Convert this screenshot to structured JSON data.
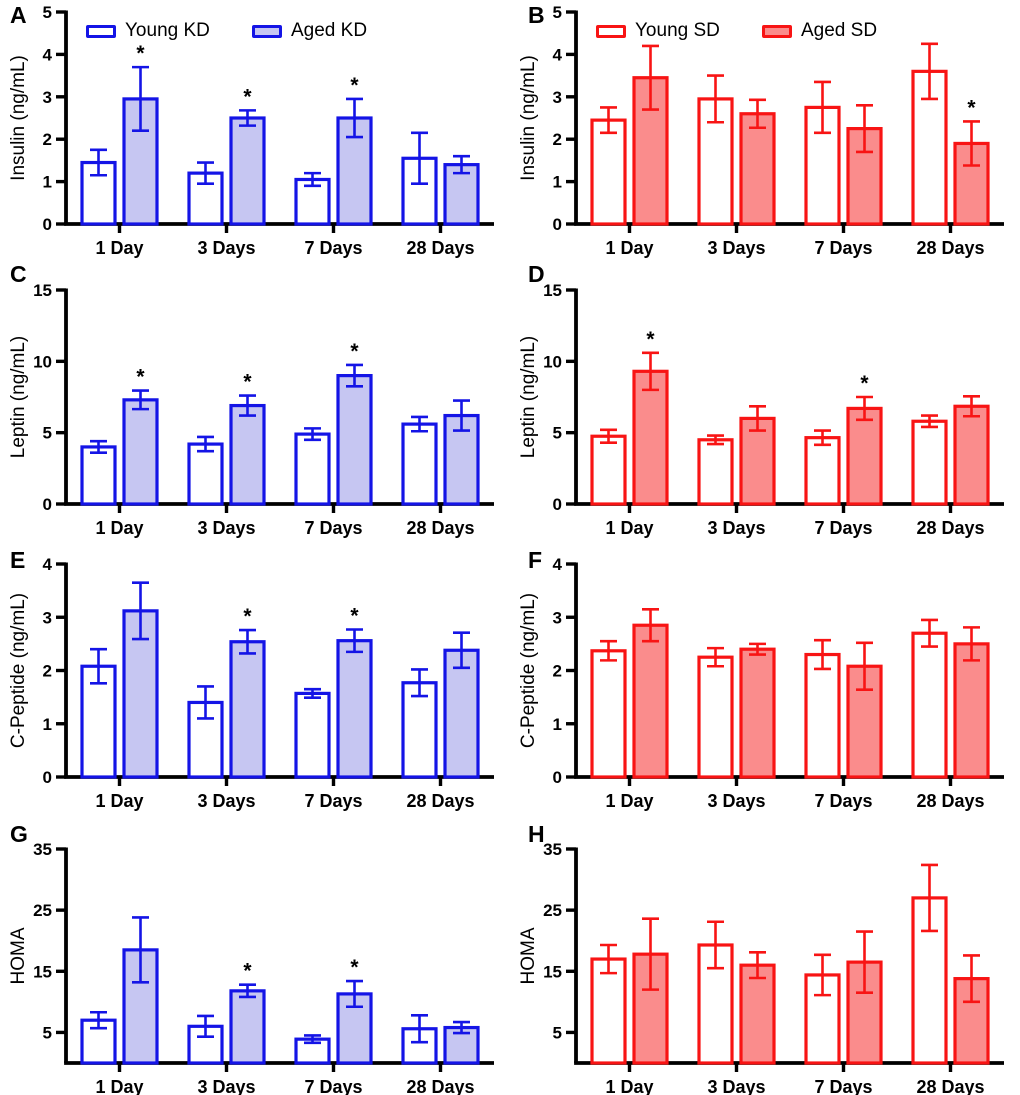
{
  "style": {
    "colors": {
      "blue": {
        "stroke": "#1414e6",
        "fill": "#c6c6f2"
      },
      "red": {
        "stroke": "#f81414",
        "fill": "#fa8c8c"
      }
    },
    "axis_color": "#000000",
    "sig_marker": "*"
  },
  "chart_data": [
    {
      "id": "A",
      "letter": "A",
      "type": "bar",
      "ylabel": "Insulin (ng/mL)",
      "xlabel": "",
      "ylim": [
        0,
        5
      ],
      "yticks": [
        0,
        1,
        2,
        3,
        4,
        5
      ],
      "color": "blue",
      "legend": true,
      "legend_position": "top-inside",
      "grid": false,
      "categories": [
        "1 Day",
        "3 Days",
        "7 Days",
        "28 Days"
      ],
      "series": [
        {
          "name": "Young KD",
          "fill": "white",
          "values": [
            1.45,
            1.2,
            1.05,
            1.55
          ],
          "errors": [
            0.3,
            0.25,
            0.15,
            0.6
          ],
          "significant": [
            false,
            false,
            false,
            false
          ]
        },
        {
          "name": "Aged KD",
          "fill": "light",
          "values": [
            2.95,
            2.5,
            2.5,
            1.4
          ],
          "errors": [
            0.75,
            0.18,
            0.45,
            0.2
          ],
          "significant": [
            true,
            true,
            true,
            false
          ]
        }
      ]
    },
    {
      "id": "B",
      "letter": "B",
      "type": "bar",
      "ylabel": "Insulin (ng/mL)",
      "xlabel": "",
      "ylim": [
        0,
        5
      ],
      "yticks": [
        0,
        1,
        2,
        3,
        4,
        5
      ],
      "color": "red",
      "legend": true,
      "legend_position": "top-inside",
      "grid": false,
      "categories": [
        "1 Day",
        "3 Days",
        "7 Days",
        "28 Days"
      ],
      "series": [
        {
          "name": "Young SD",
          "fill": "white",
          "values": [
            2.45,
            2.95,
            2.75,
            3.6
          ],
          "errors": [
            0.3,
            0.55,
            0.6,
            0.65
          ],
          "significant": [
            false,
            false,
            false,
            false
          ]
        },
        {
          "name": "Aged SD",
          "fill": "light",
          "values": [
            3.45,
            2.6,
            2.25,
            1.9
          ],
          "errors": [
            0.75,
            0.33,
            0.55,
            0.52
          ],
          "significant": [
            false,
            false,
            false,
            true
          ]
        }
      ]
    },
    {
      "id": "C",
      "letter": "C",
      "type": "bar",
      "ylabel": "Leptin (ng/mL)",
      "xlabel": "",
      "ylim": [
        0,
        15
      ],
      "yticks": [
        0,
        5,
        10,
        15
      ],
      "color": "blue",
      "legend": false,
      "grid": false,
      "categories": [
        "1 Day",
        "3 Days",
        "7 Days",
        "28 Days"
      ],
      "series": [
        {
          "name": "Young KD",
          "fill": "white",
          "values": [
            4.0,
            4.2,
            4.9,
            5.6
          ],
          "errors": [
            0.4,
            0.5,
            0.4,
            0.5
          ],
          "significant": [
            false,
            false,
            false,
            false
          ]
        },
        {
          "name": "Aged KD",
          "fill": "light",
          "values": [
            7.3,
            6.9,
            9.0,
            6.2
          ],
          "errors": [
            0.65,
            0.7,
            0.75,
            1.05
          ],
          "significant": [
            true,
            true,
            true,
            false
          ]
        }
      ]
    },
    {
      "id": "D",
      "letter": "D",
      "type": "bar",
      "ylabel": "Leptin (ng/mL)",
      "xlabel": "",
      "ylim": [
        0,
        15
      ],
      "yticks": [
        0,
        5,
        10,
        15
      ],
      "color": "red",
      "legend": false,
      "grid": false,
      "categories": [
        "1 Day",
        "3 Days",
        "7 Days",
        "28 Days"
      ],
      "series": [
        {
          "name": "Young SD",
          "fill": "white",
          "values": [
            4.75,
            4.5,
            4.65,
            5.8
          ],
          "errors": [
            0.45,
            0.3,
            0.5,
            0.4
          ],
          "significant": [
            false,
            false,
            false,
            false
          ]
        },
        {
          "name": "Aged SD",
          "fill": "light",
          "values": [
            9.3,
            6.0,
            6.7,
            6.85
          ],
          "errors": [
            1.3,
            0.85,
            0.8,
            0.7
          ],
          "significant": [
            true,
            false,
            true,
            false
          ]
        }
      ]
    },
    {
      "id": "E",
      "letter": "E",
      "type": "bar",
      "ylabel": "C-Peptide (ng/mL)",
      "xlabel": "",
      "ylim": [
        0,
        4
      ],
      "yticks": [
        0,
        1,
        2,
        3,
        4
      ],
      "color": "blue",
      "legend": false,
      "grid": false,
      "categories": [
        "1 Day",
        "3 Days",
        "7 Days",
        "28 Days"
      ],
      "series": [
        {
          "name": "Young KD",
          "fill": "white",
          "values": [
            2.08,
            1.4,
            1.57,
            1.77
          ],
          "errors": [
            0.32,
            0.3,
            0.08,
            0.25
          ],
          "significant": [
            false,
            false,
            false,
            false
          ]
        },
        {
          "name": "Aged KD",
          "fill": "light",
          "values": [
            3.12,
            2.54,
            2.56,
            2.38
          ],
          "errors": [
            0.53,
            0.22,
            0.21,
            0.33
          ],
          "significant": [
            false,
            true,
            true,
            false
          ]
        }
      ]
    },
    {
      "id": "F",
      "letter": "F",
      "type": "bar",
      "ylabel": "C-Peptide (ng/mL)",
      "xlabel": "",
      "ylim": [
        0,
        4
      ],
      "yticks": [
        0,
        1,
        2,
        3,
        4
      ],
      "color": "red",
      "legend": false,
      "grid": false,
      "categories": [
        "1 Day",
        "3 Days",
        "7 Days",
        "28 Days"
      ],
      "series": [
        {
          "name": "Young SD",
          "fill": "white",
          "values": [
            2.37,
            2.25,
            2.3,
            2.7
          ],
          "errors": [
            0.18,
            0.17,
            0.27,
            0.25
          ],
          "significant": [
            false,
            false,
            false,
            false
          ]
        },
        {
          "name": "Aged SD",
          "fill": "light",
          "values": [
            2.85,
            2.4,
            2.08,
            2.5
          ],
          "errors": [
            0.3,
            0.1,
            0.44,
            0.31
          ],
          "significant": [
            false,
            false,
            false,
            false
          ]
        }
      ]
    },
    {
      "id": "G",
      "letter": "G",
      "type": "bar",
      "ylabel": "HOMA",
      "xlabel": "",
      "ylim": [
        0,
        35
      ],
      "yticks": [
        5,
        15,
        25,
        35
      ],
      "color": "blue",
      "legend": false,
      "grid": false,
      "categories": [
        "1 Day",
        "3 Days",
        "7 Days",
        "28 Days"
      ],
      "series": [
        {
          "name": "Young KD",
          "fill": "white",
          "values": [
            7.0,
            6.0,
            3.9,
            5.6
          ],
          "errors": [
            1.3,
            1.7,
            0.6,
            2.2
          ],
          "significant": [
            false,
            false,
            false,
            false
          ]
        },
        {
          "name": "Aged KD",
          "fill": "light",
          "values": [
            18.5,
            11.8,
            11.3,
            5.8
          ],
          "errors": [
            5.3,
            1.0,
            2.1,
            0.9
          ],
          "significant": [
            false,
            true,
            true,
            false
          ]
        }
      ]
    },
    {
      "id": "H",
      "letter": "H",
      "type": "bar",
      "ylabel": "HOMA",
      "xlabel": "",
      "ylim": [
        0,
        35
      ],
      "yticks": [
        5,
        15,
        25,
        35
      ],
      "color": "red",
      "legend": false,
      "grid": false,
      "categories": [
        "1 Day",
        "3 Days",
        "7 Days",
        "28 Days"
      ],
      "series": [
        {
          "name": "Young SD",
          "fill": "white",
          "values": [
            17.0,
            19.3,
            14.4,
            27.0
          ],
          "errors": [
            2.3,
            3.8,
            3.3,
            5.4
          ],
          "significant": [
            false,
            false,
            false,
            false
          ]
        },
        {
          "name": "Aged SD",
          "fill": "light",
          "values": [
            17.8,
            16.0,
            16.5,
            13.8
          ],
          "errors": [
            5.8,
            2.1,
            5.0,
            3.8
          ],
          "significant": [
            false,
            false,
            false,
            false
          ]
        }
      ]
    }
  ]
}
